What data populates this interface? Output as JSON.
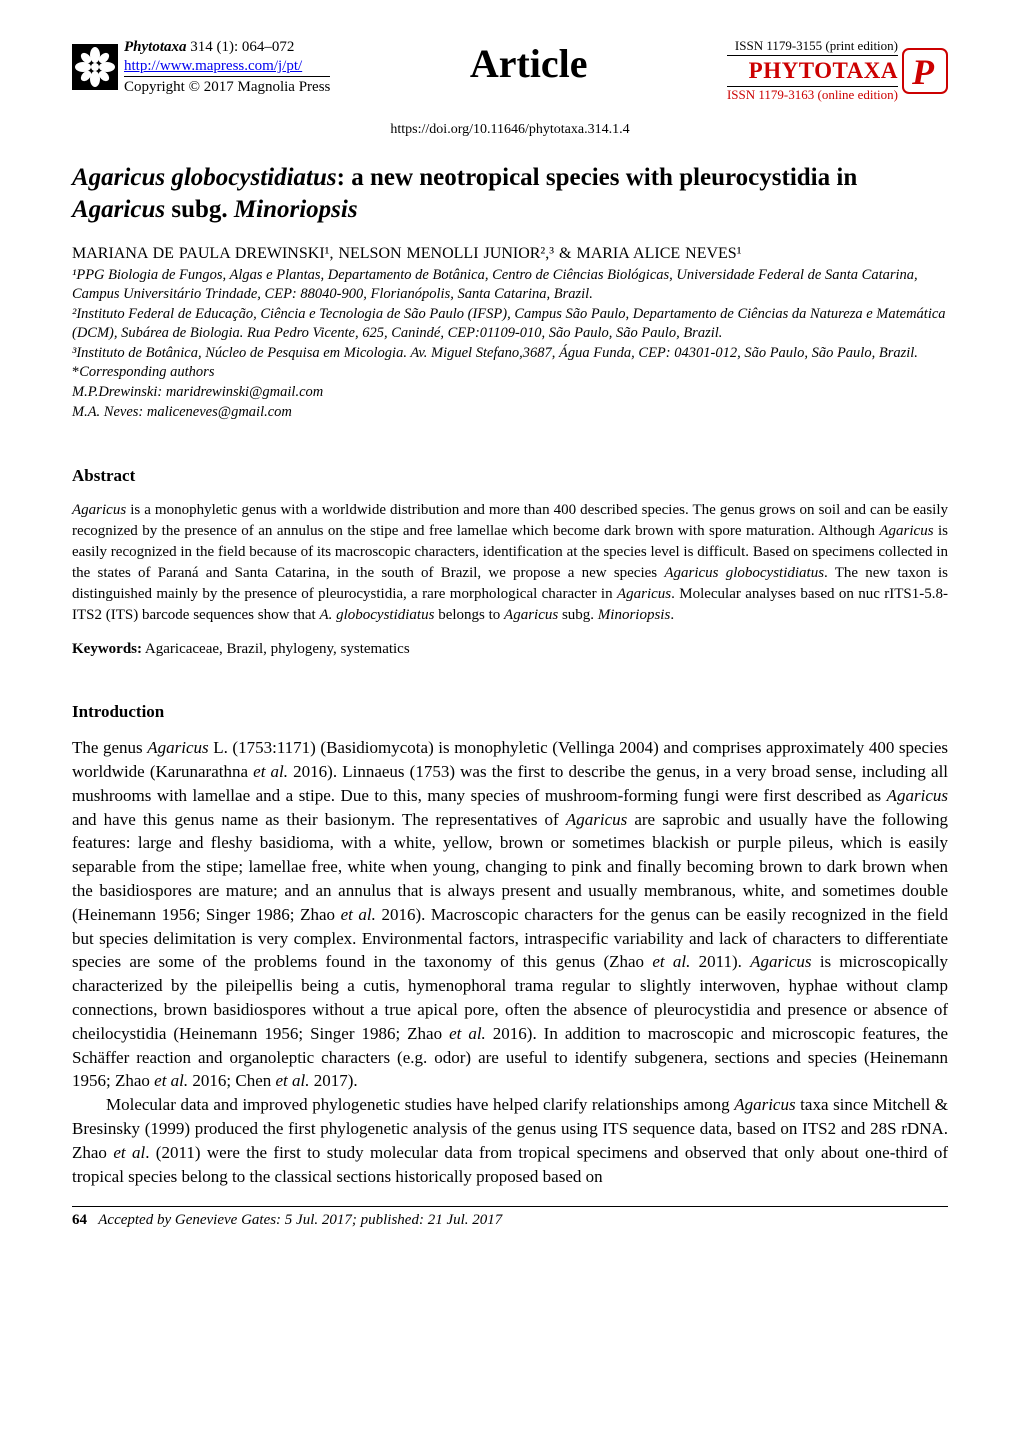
{
  "header": {
    "journal_name": "Phytotaxa",
    "volume_info": " 314 (1): 064–072",
    "url": "http://www.mapress.com/j/pt/",
    "copyright": "Copyright © 2017 Magnolia Press",
    "article_label": "Article",
    "issn_print": "ISSN 1179-3155 (print edition)",
    "brand": "PHYTOTAXA",
    "issn_online": "ISSN 1179-3163 (online edition)",
    "doi": "https://doi.org/10.11646/phytotaxa.314.1.4"
  },
  "title": {
    "part1": "Agaricus globocystidiatus",
    "part2": ": a new neotropical species with pleurocystidia in ",
    "part3": "Agaricus",
    "part4": " subg. ",
    "part5": "Minoriopsis"
  },
  "authors": "MARIANA DE PAULA DREWINSKI¹, NELSON MENOLLI JUNIOR²,³ & MARIA ALICE NEVES¹",
  "affiliations": {
    "a1": "¹PPG Biologia de Fungos, Algas e Plantas, Departamento de Botânica, Centro de Ciências Biológicas, Universidade Federal de Santa Catarina, Campus Universitário Trindade, CEP: 88040-900, Florianópolis, Santa Catarina, Brazil.",
    "a2": "²Instituto Federal de Educação, Ciência e Tecnologia de São Paulo (IFSP), Campus São Paulo, Departamento de Ciências da Natureza e Matemática (DCM), Subárea de Biologia. Rua Pedro Vicente, 625, Canindé, CEP:01109-010, São Paulo, São Paulo, Brazil.",
    "a3": "³Instituto de Botânica, Núcleo de Pesquisa em Micologia. Av. Miguel Stefano,3687, Água Funda, CEP: 04301-012, São Paulo, São Paulo, Brazil.",
    "corr_label": "*Corresponding authors",
    "corr1": "M.P.Drewinski: maridrewinski@gmail.com",
    "corr2": "M.A. Neves: maliceneves@gmail.com"
  },
  "abstract": {
    "heading": "Abstract",
    "p1a": "Agaricus",
    "p1b": " is a monophyletic genus with a worldwide distribution and more than 400 described species. The genus grows on soil and can be easily recognized by the presence of an annulus on the stipe and free lamellae which become dark brown with spore maturation. Although ",
    "p1c": "Agaricus",
    "p1d": " is easily recognized in the field because of its macroscopic characters, identification at the species level is difficult. Based on specimens collected in the states of Paraná and Santa Catarina, in the south of Brazil, we propose a new species ",
    "p1e": "Agaricus globocystidiatus",
    "p1f": ". The new taxon is distinguished mainly by the presence of pleurocystidia, a rare morphological character in ",
    "p1g": "Agaricus",
    "p1h": ". Molecular analyses based on nuc rITS1-5.8-ITS2 (ITS) barcode sequences show that ",
    "p1i": "A. globocystidiatus",
    "p1j": " belongs to ",
    "p1k": "Agaricus",
    "p1l": " subg. ",
    "p1m": "Minoriopsis",
    "p1n": "."
  },
  "keywords": {
    "label": "Keywords:",
    "text": " Agaricaceae, Brazil, phylogeny, systematics"
  },
  "intro": {
    "heading": "Introduction",
    "p1": "The genus <span class=\"italic\">Agaricus</span> L. (1753:1171) (Basidiomycota) is monophyletic (Vellinga 2004) and comprises approximately 400 species worldwide (Karunarathna <span class=\"italic\">et al.</span> 2016). Linnaeus (1753) was the first to describe the genus, in a very broad sense, including all mushrooms with lamellae and a stipe. Due to this, many species of mushroom-forming fungi were first described as <span class=\"italic\">Agaricus</span> and have this genus name as their basionym. The representatives of <span class=\"italic\">Agaricus</span> are saprobic and usually have the following features: large and fleshy basidioma, with a white, yellow, brown or sometimes blackish or purple pileus, which is easily separable from the stipe; lamellae free, white when young, changing to pink and finally becoming brown to dark brown when the basidiospores are mature; and an annulus that is always present and usually membranous, white, and sometimes double (Heinemann 1956; Singer 1986; Zhao <span class=\"italic\">et al.</span> 2016). Macroscopic characters for the genus can be easily recognized in the field but species delimitation is very complex. Environmental factors, intraspecific variability and lack of characters to differentiate species are some of the problems found in the taxonomy of this genus (Zhao <span class=\"italic\">et al.</span> 2011). <span class=\"italic\">Agaricus</span> is microscopically characterized by the pileipellis being a cutis, hymenophoral trama regular to slightly interwoven, hyphae without clamp connections, brown basidiospores without a true apical pore, often the absence of pleurocystidia and presence or absence of cheilocystidia (Heinemann 1956; Singer 1986; Zhao <span class=\"italic\">et al.</span> 2016). In addition to macroscopic and microscopic features, the Schäffer reaction and organoleptic characters (e.g. odor) are useful to identify subgenera, sections and species (Heinemann 1956; Zhao <span class=\"italic\">et al.</span> 2016; Chen <span class=\"italic\">et al.</span> 2017).",
    "p2": "Molecular data and improved phylogenetic studies have helped clarify relationships among <span class=\"italic\">Agaricus</span> taxa since Mitchell & Bresinsky (1999) produced the first phylogenetic analysis of the genus using ITS sequence data, based on ITS2 and 28S rDNA. Zhao <span class=\"italic\">et al</span>. (2011) were the first to study molecular data from tropical specimens and observed that only about one-third of tropical species belong to the classical sections historically proposed based on"
  },
  "footer": {
    "pagenum": "64",
    "text": "Accepted by Genevieve Gates: 5 Jul. 2017; published: 21 Jul. 2017"
  },
  "colors": {
    "brand_red": "#cc0000",
    "link_blue": "#0000ee"
  }
}
